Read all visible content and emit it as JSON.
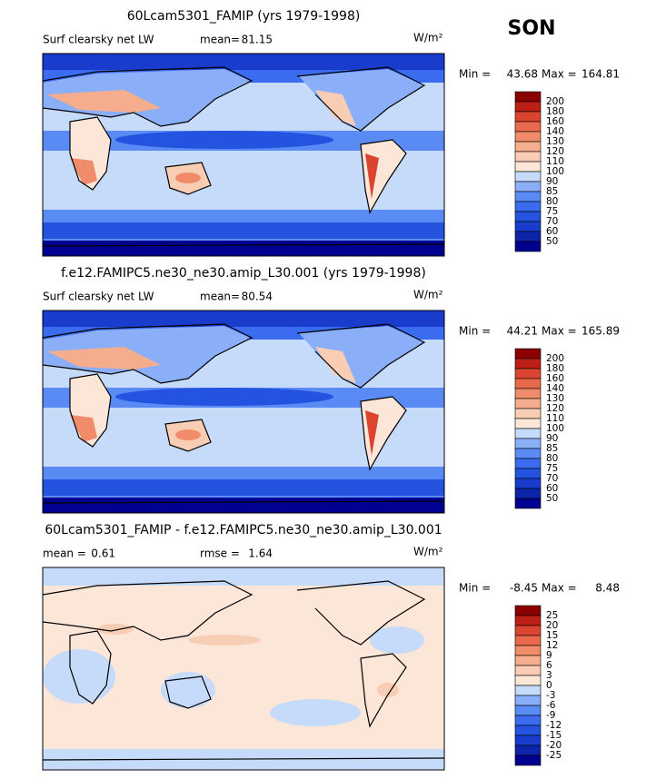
{
  "season": "SON",
  "panels": [
    {
      "title": "60Lcam5301_FAMIP (yrs 1979-1998)",
      "variable": "Surf clearsky net LW",
      "stats": [
        {
          "label": "mean=",
          "value": 81.15
        }
      ],
      "units": "W/m²",
      "min_label": "Min =",
      "min": 43.68,
      "max_label": "Max =",
      "max": 164.81,
      "levels": [
        200,
        180,
        160,
        140,
        130,
        120,
        110,
        100,
        90,
        85,
        80,
        75,
        70,
        60,
        50
      ],
      "colors": [
        "#8b0000",
        "#bc1f16",
        "#db4530",
        "#e96a4b",
        "#f18c6b",
        "#f6ad8d",
        "#f9ccb4",
        "#fbe6d8",
        "#c6daf9",
        "#8aaff8",
        "#5a8bf5",
        "#3b6bef",
        "#2453e0",
        "#1a3ccc",
        "#0d24a8",
        "#000090"
      ]
    },
    {
      "title": "f.e12.FAMIPC5.ne30_ne30.amip_L30.001 (yrs 1979-1998)",
      "variable": "Surf clearsky net LW",
      "stats": [
        {
          "label": "mean=",
          "value": 80.54
        }
      ],
      "units": "W/m²",
      "min_label": "Min =",
      "min": 44.21,
      "max_label": "Max =",
      "max": 165.89,
      "levels": [
        200,
        180,
        160,
        140,
        130,
        120,
        110,
        100,
        90,
        85,
        80,
        75,
        70,
        60,
        50
      ],
      "colors": [
        "#8b0000",
        "#bc1f16",
        "#db4530",
        "#e96a4b",
        "#f18c6b",
        "#f6ad8d",
        "#f9ccb4",
        "#fbe6d8",
        "#c6daf9",
        "#8aaff8",
        "#5a8bf5",
        "#3b6bef",
        "#2453e0",
        "#1a3ccc",
        "#0d24a8",
        "#000090"
      ]
    },
    {
      "title": "60Lcam5301_FAMIP - f.e12.FAMIPC5.ne30_ne30.amip_L30.001",
      "stats": [
        {
          "label": "mean =",
          "value": 0.61
        },
        {
          "label": "rmse =",
          "value": 1.64
        }
      ],
      "units": "W/m²",
      "min_label": "Min =",
      "min": -8.45,
      "max_label": "Max =",
      "max": 8.48,
      "levels": [
        25,
        20,
        15,
        12,
        9,
        6,
        3,
        0,
        -3,
        -6,
        -9,
        -12,
        -15,
        -20,
        -25
      ],
      "colors": [
        "#8b0000",
        "#bc1f16",
        "#db4530",
        "#e96a4b",
        "#f18c6b",
        "#f6ad8d",
        "#f9ccb4",
        "#fbe6d8",
        "#c6daf9",
        "#8aaff8",
        "#5a8bf5",
        "#3b6bef",
        "#2453e0",
        "#1a3ccc",
        "#0d24a8",
        "#000090"
      ]
    }
  ]
}
